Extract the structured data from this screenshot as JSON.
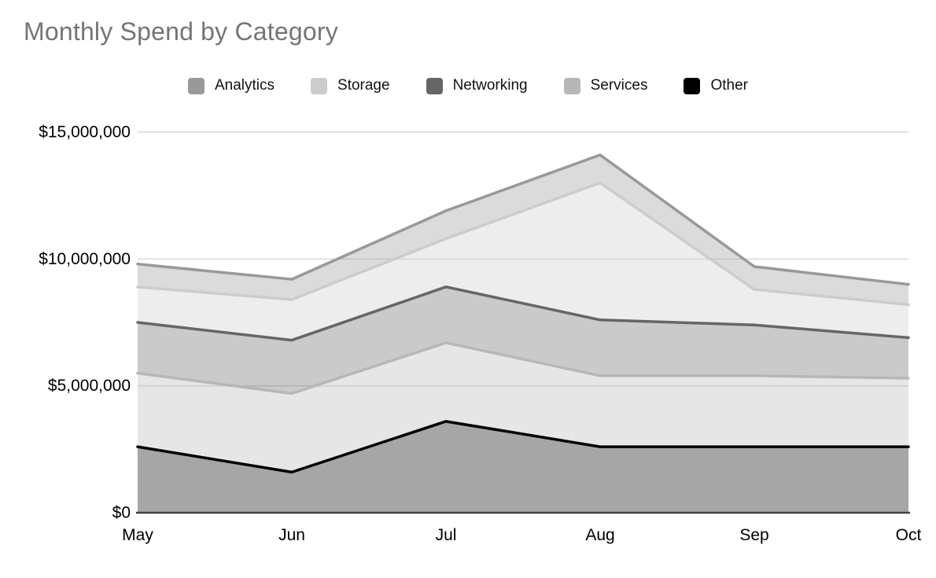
{
  "chart_data": {
    "type": "area",
    "stacked": true,
    "title": "Monthly Spend by Category",
    "title_color": "#757575",
    "categories": [
      "May",
      "Jun",
      "Jul",
      "Aug",
      "Sep",
      "Oct"
    ],
    "series": [
      {
        "name": "Analytics",
        "color": "#999999",
        "values": [
          900000,
          800000,
          1100000,
          1100000,
          900000,
          800000
        ]
      },
      {
        "name": "Storage",
        "color": "#cccccc",
        "values": [
          1400000,
          1600000,
          1900000,
          5400000,
          1400000,
          1300000
        ]
      },
      {
        "name": "Networking",
        "color": "#666666",
        "values": [
          2000000,
          2100000,
          2200000,
          2200000,
          2000000,
          1600000
        ]
      },
      {
        "name": "Services",
        "color": "#b7b7b7",
        "values": [
          2900000,
          3100000,
          3100000,
          2800000,
          2800000,
          2700000
        ]
      },
      {
        "name": "Other",
        "color": "#000000",
        "values": [
          2600000,
          1600000,
          3600000,
          2600000,
          2600000,
          2600000
        ]
      }
    ],
    "stack_order_bottom_to_top": [
      "Other",
      "Services",
      "Networking",
      "Storage",
      "Analytics"
    ],
    "y_ticks": [
      {
        "label": "$0",
        "value": 0
      },
      {
        "label": "$5,000,000",
        "value": 5000000
      },
      {
        "label": "$10,000,000",
        "value": 10000000
      },
      {
        "label": "$15,000,000",
        "value": 15000000
      }
    ],
    "ylim": [
      0,
      15000000
    ],
    "grid": true,
    "gridline_color": "#d9d9d9",
    "axis_line_color": "#424242",
    "legend_position": "top",
    "fill_opacity": 0.35
  }
}
